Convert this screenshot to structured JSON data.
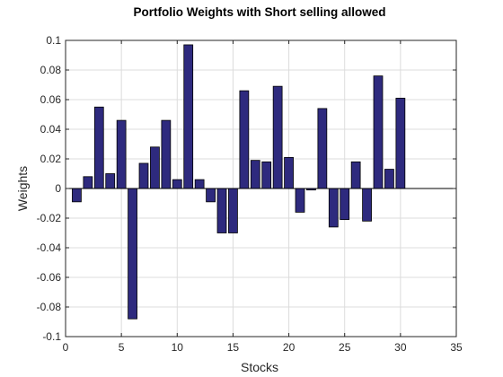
{
  "chart_data": {
    "type": "bar",
    "title": "Portfolio Weights with Short selling allowed",
    "xlabel": "Stocks",
    "ylabel": "Weights",
    "xlim": [
      0,
      35
    ],
    "ylim": [
      -0.1,
      0.1
    ],
    "xticks": [
      0,
      5,
      10,
      15,
      20,
      25,
      30,
      35
    ],
    "yticks": [
      -0.1,
      -0.08,
      -0.06,
      -0.04,
      -0.02,
      0,
      0.02,
      0.04,
      0.06,
      0.08,
      0.1
    ],
    "xtick_labels": [
      "0",
      "5",
      "10",
      "15",
      "20",
      "25",
      "30",
      "35"
    ],
    "ytick_labels": [
      "-0.1",
      "-0.08",
      "-0.06",
      "-0.04",
      "-0.02",
      "0",
      "0.02",
      "0.04",
      "0.06",
      "0.08",
      "0.1"
    ],
    "grid": true,
    "bar_color": "#2e2a7e",
    "x": [
      1,
      2,
      3,
      4,
      5,
      6,
      7,
      8,
      9,
      10,
      11,
      12,
      13,
      14,
      15,
      16,
      17,
      18,
      19,
      20,
      21,
      22,
      23,
      24,
      25,
      26,
      27,
      28,
      29,
      30
    ],
    "values": [
      -0.009,
      0.008,
      0.055,
      0.01,
      0.046,
      -0.088,
      0.017,
      0.028,
      0.046,
      0.006,
      0.097,
      0.006,
      -0.009,
      -0.03,
      -0.03,
      0.066,
      0.019,
      0.018,
      0.069,
      0.021,
      -0.016,
      -0.001,
      0.054,
      -0.026,
      -0.021,
      0.018,
      -0.022,
      0.076,
      0.013,
      0.061
    ]
  }
}
